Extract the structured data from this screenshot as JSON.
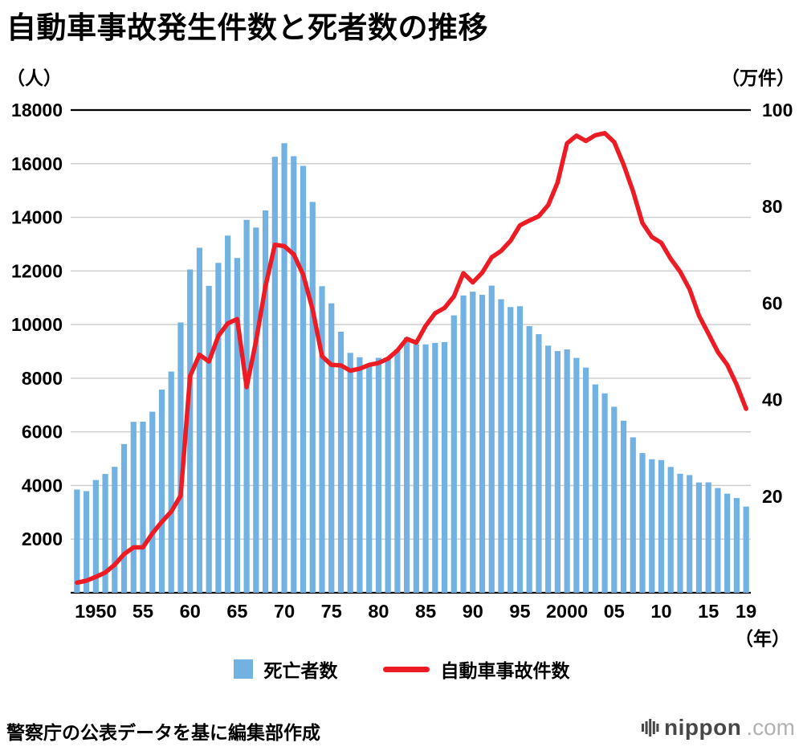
{
  "title": "自動車事故発生件数と死者数の推移",
  "left_axis_unit": "（人）",
  "right_axis_unit": "（万件）",
  "x_axis_unit": "（年）",
  "legend": {
    "bars": "死亡者数",
    "line": "自動車事故件数"
  },
  "footer": {
    "source": "警察庁の公表データを基に編集部作成",
    "logo_main": "nippon",
    "logo_suffix": ".com"
  },
  "colors": {
    "bar": "#72b2e3",
    "line": "#ed1c24",
    "grid": "#cccccc",
    "axis": "#000000"
  },
  "chart_data": {
    "type": "combo",
    "title": "自動車事故発生件数と死者数の推移",
    "x": [
      1948,
      1949,
      1950,
      1951,
      1952,
      1953,
      1954,
      1955,
      1956,
      1957,
      1958,
      1959,
      1960,
      1961,
      1962,
      1963,
      1964,
      1965,
      1966,
      1967,
      1968,
      1969,
      1970,
      1971,
      1972,
      1973,
      1974,
      1975,
      1976,
      1977,
      1978,
      1979,
      1980,
      1981,
      1982,
      1983,
      1984,
      1985,
      1986,
      1987,
      1988,
      1989,
      1990,
      1991,
      1992,
      1993,
      1994,
      1995,
      1996,
      1997,
      1998,
      1999,
      2000,
      2001,
      2002,
      2003,
      2004,
      2005,
      2006,
      2007,
      2008,
      2009,
      2010,
      2011,
      2012,
      2013,
      2014,
      2015,
      2016,
      2017,
      2018,
      2019
    ],
    "x_ticks": [
      {
        "year": 1950,
        "label": "1950"
      },
      {
        "year": 1955,
        "label": "55"
      },
      {
        "year": 1960,
        "label": "60"
      },
      {
        "year": 1965,
        "label": "65"
      },
      {
        "year": 1970,
        "label": "70"
      },
      {
        "year": 1975,
        "label": "75"
      },
      {
        "year": 1980,
        "label": "80"
      },
      {
        "year": 1985,
        "label": "85"
      },
      {
        "year": 1990,
        "label": "90"
      },
      {
        "year": 1995,
        "label": "95"
      },
      {
        "year": 2000,
        "label": "2000"
      },
      {
        "year": 2005,
        "label": "05"
      },
      {
        "year": 2010,
        "label": "10"
      },
      {
        "year": 2015,
        "label": "15"
      },
      {
        "year": 2019,
        "label": "19"
      }
    ],
    "series": [
      {
        "name": "死亡者数",
        "kind": "bar",
        "axis": "left",
        "unit": "人",
        "values": [
          3848,
          3790,
          4202,
          4429,
          4696,
          5544,
          6374,
          6379,
          6751,
          7575,
          8248,
          10079,
          12055,
          12865,
          11445,
          12301,
          13318,
          12484,
          13904,
          13618,
          14256,
          16257,
          16765,
          16278,
          15918,
          14574,
          11432,
          10792,
          9734,
          8945,
          8783,
          8466,
          8760,
          8719,
          9073,
          9520,
          9262,
          9261,
          9317,
          9347,
          10344,
          11086,
          11227,
          11109,
          11452,
          10945,
          10653,
          10684,
          9943,
          9642,
          9214,
          9012,
          9073,
          8757,
          8396,
          7768,
          7436,
          6937,
          6415,
          5796,
          5209,
          4979,
          4948,
          4691,
          4438,
          4388,
          4113,
          4117,
          3904,
          3694,
          3532,
          3215
        ]
      },
      {
        "name": "自動車事故件数",
        "kind": "line",
        "axis": "right",
        "unit": "万件",
        "values": [
          2.1,
          2.5,
          3.3,
          4.2,
          5.8,
          8.0,
          9.4,
          9.4,
          12.3,
          14.7,
          16.8,
          20.1,
          44.9,
          49.3,
          47.9,
          53.2,
          55.8,
          56.7,
          42.6,
          52.2,
          63.5,
          72.1,
          71.8,
          70.1,
          65.9,
          58.7,
          49.0,
          47.2,
          47.1,
          46.0,
          46.4,
          47.2,
          47.6,
          48.5,
          50.2,
          52.6,
          51.8,
          55.3,
          57.9,
          59.0,
          61.4,
          66.2,
          64.3,
          66.3,
          69.5,
          70.8,
          72.9,
          76.1,
          77.1,
          78.0,
          80.3,
          85.0,
          93.1,
          94.7,
          93.6,
          94.8,
          95.2,
          93.4,
          88.7,
          83.2,
          76.6,
          73.7,
          72.5,
          69.2,
          66.5,
          62.9,
          57.4,
          53.7,
          49.9,
          47.2,
          43.1,
          38.1
        ]
      }
    ],
    "left_axis": {
      "min": 0,
      "max": 18000,
      "ticks": [
        2000,
        4000,
        6000,
        8000,
        10000,
        12000,
        14000,
        16000,
        18000
      ]
    },
    "right_axis": {
      "min": 0,
      "max": 100,
      "ticks": [
        20,
        40,
        60,
        80,
        100
      ]
    },
    "grid": "horizontal",
    "legend_position": "bottom"
  }
}
